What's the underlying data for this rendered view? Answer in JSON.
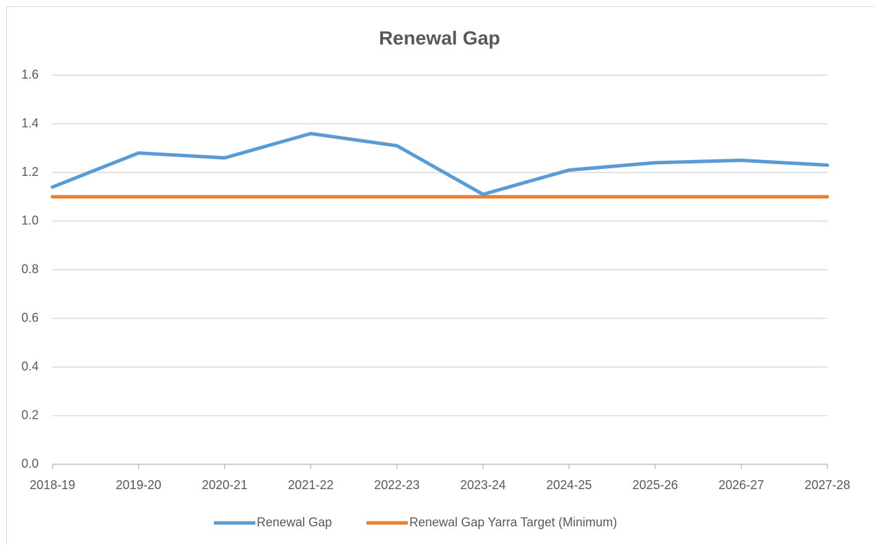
{
  "chart_data": {
    "type": "line",
    "title": "Renewal Gap",
    "categories": [
      "2018-19",
      "2019-20",
      "2020-21",
      "2021-22",
      "2022-23",
      "2023-24",
      "2024-25",
      "2025-26",
      "2026-27",
      "2027-28"
    ],
    "series": [
      {
        "name": "Renewal Gap",
        "color": "#5b9bd5",
        "values": [
          1.14,
          1.28,
          1.26,
          1.36,
          1.31,
          1.11,
          1.21,
          1.24,
          1.25,
          1.23
        ]
      },
      {
        "name": "Renewal Gap Yarra Target (Minimum)",
        "color": "#ed7d31",
        "values": [
          1.1,
          1.1,
          1.1,
          1.1,
          1.1,
          1.1,
          1.1,
          1.1,
          1.1,
          1.1
        ]
      }
    ],
    "ylim": [
      0,
      1.6
    ],
    "yticks": [
      {
        "value": 0,
        "label": "0.0"
      },
      0.2,
      0.4,
      0.6,
      0.8,
      {
        "value": 1,
        "label": "1.0"
      },
      1.2,
      1.4,
      1.6
    ],
    "grid": true,
    "legend": "bottom"
  }
}
